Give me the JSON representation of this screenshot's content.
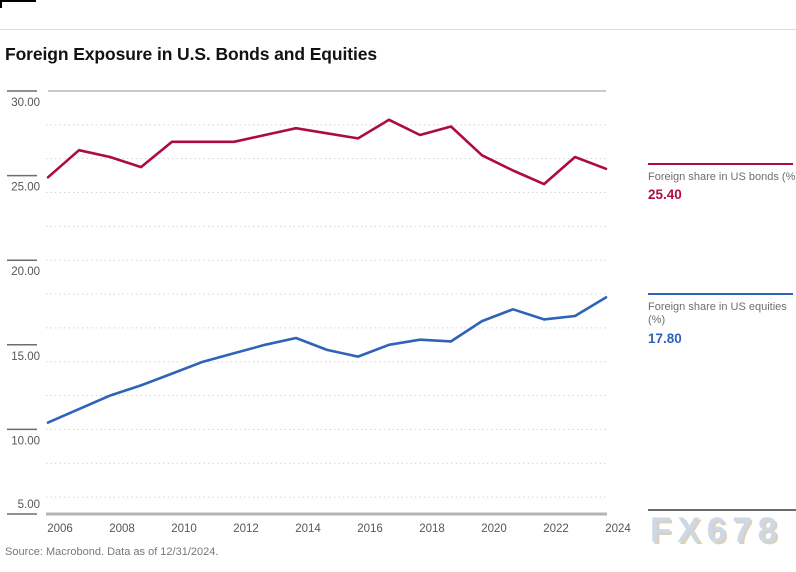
{
  "page": {
    "title": "Foreign Exposure in U.S. Bonds and Equities"
  },
  "source_note": "Source: Macrobond. Data as of 12/31/2024.",
  "watermark": "FX678",
  "legend": {
    "bonds": {
      "label": "Foreign share in US bonds (%)",
      "value": "25.40"
    },
    "equities": {
      "label": "Foreign share in US equities (%)",
      "value": "17.80"
    }
  },
  "chart_data": {
    "type": "line",
    "title": "Foreign Exposure in U.S. Bonds and Equities",
    "x": [
      2006,
      2007,
      2008,
      2009,
      2010,
      2011,
      2012,
      2013,
      2014,
      2015,
      2016,
      2017,
      2018,
      2019,
      2020,
      2021,
      2022,
      2023,
      2024
    ],
    "series": [
      {
        "id": "bonds",
        "name": "Foreign share in US bonds (%)",
        "color": "#AD0C40",
        "current": 25.4,
        "values": [
          24.9,
          26.5,
          26.1,
          25.5,
          27.0,
          27.0,
          27.0,
          27.4,
          27.8,
          27.5,
          27.2,
          28.3,
          27.4,
          27.9,
          26.2,
          25.3,
          24.5,
          26.1,
          25.4
        ]
      },
      {
        "id": "equities",
        "name": "Foreign share in US equities (%)",
        "color": "#2E63B8",
        "current": 17.8,
        "values": [
          10.4,
          11.2,
          12.0,
          12.6,
          13.3,
          14.0,
          14.5,
          15.0,
          15.4,
          14.7,
          14.3,
          15.0,
          15.3,
          15.2,
          16.4,
          17.1,
          16.5,
          16.7,
          17.8
        ]
      }
    ],
    "ylim": [
      5,
      30
    ],
    "yticks": [
      {
        "value": 30,
        "label": "30.00"
      },
      {
        "value": 25,
        "label": "25.00"
      },
      {
        "value": 20,
        "label": "20.00"
      },
      {
        "value": 15,
        "label": "15.00"
      },
      {
        "value": 10,
        "label": "10.00"
      },
      {
        "value": 5,
        "label": "5.00"
      }
    ],
    "xtick_labels": [
      "2006",
      "2008",
      "2010",
      "2012",
      "2014",
      "2016",
      "2018",
      "2020",
      "2022",
      "2024"
    ],
    "grid_values": [
      28,
      26,
      24,
      22,
      20,
      18,
      16,
      14,
      12,
      10,
      8,
      6
    ],
    "grid": "dotted-horizontal",
    "legend_position": "right",
    "colors": {
      "grid": "#D4D4D4",
      "axis_top": "#ABABAB",
      "axis_bottom": "#B5B5B5",
      "tick": "#6E6E6E",
      "tick_label": "#56565C",
      "baseline_right": "#6A6A6A"
    }
  }
}
